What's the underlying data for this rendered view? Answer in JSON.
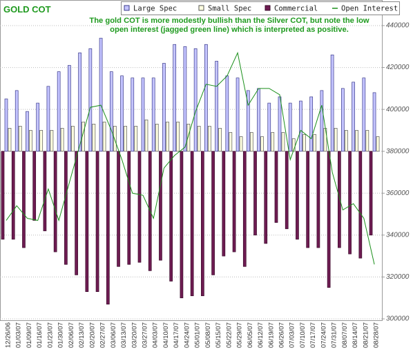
{
  "chart_data": {
    "type": "bar_line",
    "title": "GOLD COT",
    "annotation": "The gold COT is more modestly bullish than the Silver COT, but note the low open interest (jagged green line) which is interpreted as positive.",
    "categories": [
      "12/26/06",
      "01/03/07",
      "01/09/07",
      "01/16/07",
      "01/23/07",
      "01/30/07",
      "02/06/07",
      "02/13/07",
      "02/20/07",
      "02/27/07",
      "03/06/07",
      "03/13/07",
      "03/20/07",
      "03/27/07",
      "04/03/07",
      "04/10/07",
      "04/17/07",
      "04/24/07",
      "05/01/07",
      "05/08/07",
      "05/15/07",
      "05/22/07",
      "05/29/07",
      "06/05/07",
      "06/12/07",
      "06/19/07",
      "06/26/07",
      "07/03/07",
      "07/10/07",
      "07/17/07",
      "07/24/07",
      "07/31/07",
      "08/07/07",
      "08/14/07",
      "08/21/07",
      "08/28/07"
    ],
    "bar_baseline": 380000,
    "series": [
      {
        "name": "Large Spec",
        "kind": "bar",
        "color": "#c4c4ff",
        "values": [
          405000,
          409000,
          399000,
          403000,
          411000,
          418000,
          421000,
          427000,
          429000,
          434000,
          418000,
          416000,
          415000,
          415000,
          415000,
          422000,
          431000,
          430000,
          429000,
          431000,
          423000,
          416000,
          415000,
          409000,
          410000,
          403000,
          406000,
          403000,
          404000,
          406000,
          409000,
          426000,
          410000,
          413000,
          415000,
          408000
        ]
      },
      {
        "name": "Small Spec",
        "kind": "bar",
        "color": "#ffffe0",
        "values": [
          391000,
          392000,
          390000,
          390000,
          390000,
          391000,
          392000,
          394000,
          393000,
          394000,
          392000,
          392000,
          392000,
          395000,
          393000,
          394000,
          394000,
          393000,
          392000,
          392000,
          391000,
          389000,
          387000,
          389000,
          387000,
          389000,
          389000,
          386000,
          388000,
          388000,
          391000,
          391000,
          390000,
          390000,
          390000,
          387000
        ]
      },
      {
        "name": "Commercial",
        "kind": "bar",
        "color": "#6e1c52",
        "values": [
          338000,
          338000,
          334000,
          347000,
          342000,
          332000,
          326000,
          321000,
          313000,
          313000,
          307000,
          325000,
          326000,
          327000,
          323000,
          328000,
          318000,
          310000,
          311000,
          311000,
          321000,
          330000,
          332000,
          325000,
          340000,
          336000,
          346000,
          343000,
          338000,
          334000,
          334000,
          315000,
          334000,
          331000,
          329000,
          340000
        ]
      },
      {
        "name": "Open Interest",
        "kind": "line",
        "color": "#1a8f1a",
        "values": [
          347000,
          354000,
          348000,
          347000,
          362000,
          347000,
          365000,
          383000,
          401000,
          402000,
          390000,
          376000,
          360000,
          359000,
          348000,
          372000,
          378000,
          382000,
          399000,
          412000,
          411000,
          416000,
          427000,
          402000,
          410000,
          410000,
          407000,
          376000,
          390000,
          386000,
          402000,
          370000,
          352000,
          355000,
          348000,
          326000
        ]
      }
    ],
    "ylim": [
      300000,
      440000
    ],
    "yticks": [
      300000,
      320000,
      340000,
      360000,
      380000,
      400000,
      420000,
      440000
    ],
    "grid": true
  }
}
